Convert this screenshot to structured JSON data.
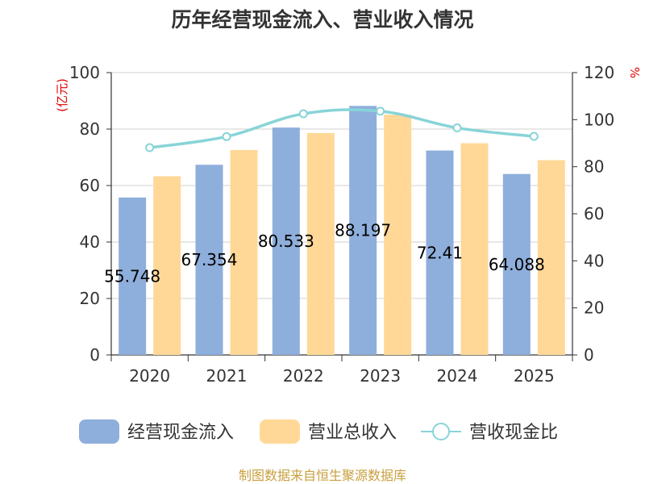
{
  "chart_data": {
    "type": "bar",
    "title": "历年经营现金流入、营业收入情况",
    "left_unit": "(亿元)",
    "right_unit": "%",
    "categories": [
      "2020",
      "2021",
      "2022",
      "2023",
      "2024",
      "2025"
    ],
    "ylim": [
      0,
      100
    ],
    "yticks": [
      "0",
      "20",
      "40",
      "60",
      "80",
      "100"
    ],
    "y2lim": [
      0,
      120
    ],
    "y2ticks": [
      "0",
      "20",
      "40",
      "60",
      "80",
      "100",
      "120"
    ],
    "grid": true,
    "legend_position": "bottom",
    "series": [
      {
        "name": "经营现金流入",
        "type": "bar",
        "axis": "left",
        "color": "#8eaedb",
        "values": [
          55.748,
          67.354,
          80.533,
          88.197,
          72.41,
          64.088
        ],
        "labels": [
          "55.748",
          "67.354",
          "80.533",
          "88.197",
          "72.41",
          "64.088"
        ]
      },
      {
        "name": "营业总收入",
        "type": "bar",
        "axis": "left",
        "color": "#ffd898",
        "values": [
          63.3,
          72.6,
          78.6,
          85.1,
          75.0,
          69.0
        ]
      },
      {
        "name": "营收现金比",
        "type": "line",
        "axis": "right",
        "color": "#88d4d8",
        "values": [
          88.1,
          92.8,
          102.5,
          103.6,
          96.5,
          92.9
        ]
      }
    ]
  },
  "source_text": "制图数据来自恒生聚源数据库"
}
